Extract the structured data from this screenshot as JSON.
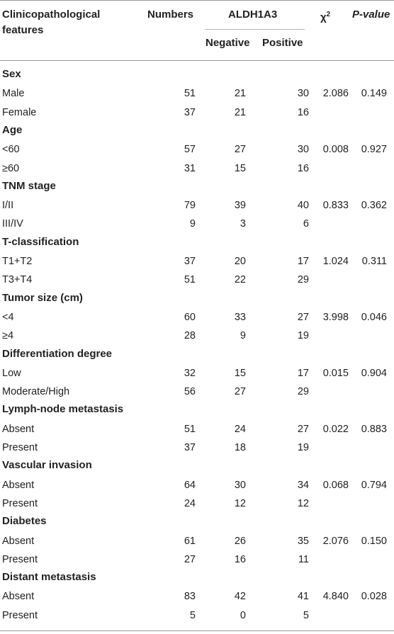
{
  "table": {
    "headers": {
      "feature": "Clinicopathological features",
      "numbers": "Numbers",
      "marker": "ALDH1A3",
      "negative": "Negative",
      "positive": "Positive",
      "chi": "χ",
      "chi_sup": "2",
      "pvalue": "P-value"
    },
    "groups": [
      {
        "name": "Sex",
        "chi": "2.086",
        "p": "0.149",
        "rows": [
          {
            "label": "Male",
            "n": "51",
            "neg": "21",
            "pos": "30"
          },
          {
            "label": "Female",
            "n": "37",
            "neg": "21",
            "pos": "16"
          }
        ]
      },
      {
        "name": "Age",
        "chi": "0.008",
        "p": "0.927",
        "rows": [
          {
            "label": "<60",
            "n": "57",
            "neg": "27",
            "pos": "30"
          },
          {
            "label": "≥60",
            "n": "31",
            "neg": "15",
            "pos": "16"
          }
        ]
      },
      {
        "name": "TNM stage",
        "chi": "0.833",
        "p": "0.362",
        "rows": [
          {
            "label": "I/II",
            "n": "79",
            "neg": "39",
            "pos": "40"
          },
          {
            "label": "III/IV",
            "n": "9",
            "neg": "3",
            "pos": "6"
          }
        ]
      },
      {
        "name": "T-classification",
        "chi": "1.024",
        "p": "0.311",
        "rows": [
          {
            "label": "T1+T2",
            "n": "37",
            "neg": "20",
            "pos": "17"
          },
          {
            "label": "T3+T4",
            "n": "51",
            "neg": "22",
            "pos": "29"
          }
        ]
      },
      {
        "name": "Tumor size (cm)",
        "chi": "3.998",
        "p": "0.046",
        "rows": [
          {
            "label": "<4",
            "n": "60",
            "neg": "33",
            "pos": "27"
          },
          {
            "label": "≥4",
            "n": "28",
            "neg": "9",
            "pos": "19"
          }
        ]
      },
      {
        "name": "Differentiation degree",
        "chi": "0.015",
        "p": "0.904",
        "rows": [
          {
            "label": "Low",
            "n": "32",
            "neg": "15",
            "pos": "17"
          },
          {
            "label": "Moderate/High",
            "n": "56",
            "neg": "27",
            "pos": "29"
          }
        ]
      },
      {
        "name": "Lymph-node metastasis",
        "chi": "0.022",
        "p": "0.883",
        "rows": [
          {
            "label": "Absent",
            "n": "51",
            "neg": "24",
            "pos": "27"
          },
          {
            "label": "Present",
            "n": "37",
            "neg": "18",
            "pos": "19"
          }
        ]
      },
      {
        "name": "Vascular invasion",
        "chi": "0.068",
        "p": "0.794",
        "rows": [
          {
            "label": "Absent",
            "n": "64",
            "neg": "30",
            "pos": "34"
          },
          {
            "label": "Present",
            "n": "24",
            "neg": "12",
            "pos": "12"
          }
        ]
      },
      {
        "name": "Diabetes",
        "chi": "2.076",
        "p": "0.150",
        "rows": [
          {
            "label": "Absent",
            "n": "61",
            "neg": "26",
            "pos": "35"
          },
          {
            "label": "Present",
            "n": "27",
            "neg": "16",
            "pos": "11"
          }
        ]
      },
      {
        "name": "Distant metastasis",
        "chi": "4.840",
        "p": "0.028",
        "rows": [
          {
            "label": "Absent",
            "n": "83",
            "neg": "42",
            "pos": "41"
          },
          {
            "label": "Present",
            "n": "5",
            "neg": "0",
            "pos": "5"
          }
        ]
      }
    ]
  }
}
